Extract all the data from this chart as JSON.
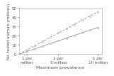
{
  "title": "",
  "xlabel": "Maximum prevalence",
  "ylabel": "No. tested animals (millions)",
  "xlim": [
    0,
    1.05
  ],
  "ylim": [
    0,
    50
  ],
  "xtick_positions": [
    0.1,
    0.5,
    1.0
  ],
  "xtick_labels": [
    "1 per\nmillion",
    "1 per\n5 million",
    "1 per\n10 million"
  ],
  "ytick_positions": [
    0,
    10,
    20,
    30,
    40,
    50
  ],
  "ytick_labels": [
    "0",
    "10",
    "20",
    "30",
    "40",
    "50"
  ],
  "line_95_x": [
    0.0,
    0.1,
    0.2,
    0.3,
    0.4,
    0.5,
    0.6,
    0.7,
    0.8,
    0.9,
    1.0
  ],
  "line_95_y": [
    0.0,
    2.9,
    5.8,
    8.7,
    11.6,
    14.5,
    17.4,
    20.3,
    23.2,
    26.1,
    29.0
  ],
  "line_99_x": [
    0.0,
    0.1,
    0.2,
    0.3,
    0.4,
    0.5,
    0.6,
    0.7,
    0.8,
    0.9,
    1.0
  ],
  "line_99_y": [
    0.0,
    4.6,
    9.2,
    13.8,
    18.4,
    23.0,
    27.6,
    32.2,
    36.8,
    41.4,
    46.0
  ],
  "line_color": "#999999",
  "marker_style": "o",
  "marker_size": 1.5,
  "line_width": 0.6,
  "background_color": "#ffffff",
  "xlabel_fontsize": 4.5,
  "ylabel_fontsize": 4.0,
  "tick_fontsize": 4.0,
  "spine_color": "#aaaaaa",
  "text_color": "#555555"
}
